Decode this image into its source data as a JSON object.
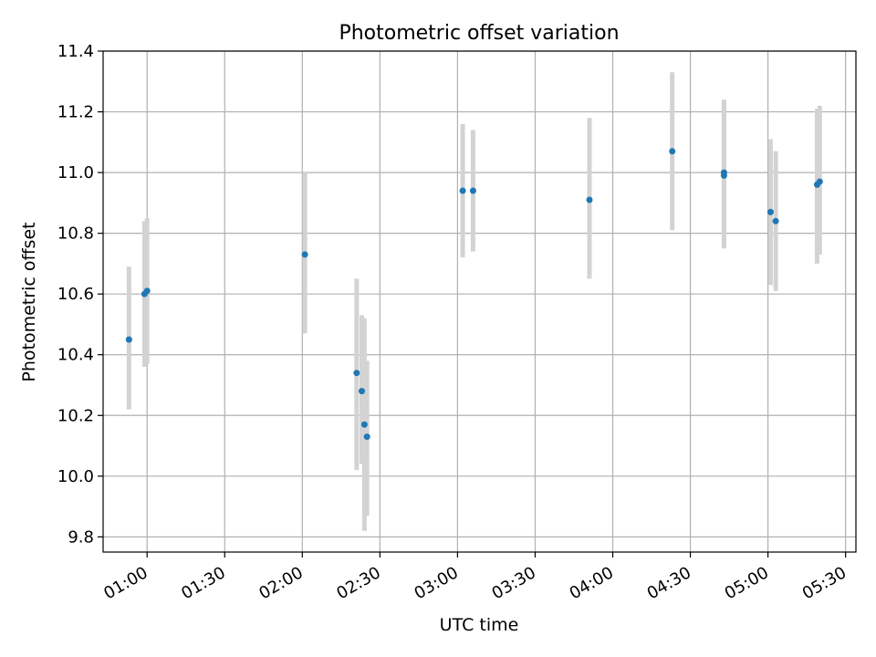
{
  "chart_data": {
    "type": "scatter",
    "title": "Photometric offset variation",
    "xlabel": "UTC time",
    "ylabel": "Photometric offset",
    "x_axis": {
      "format": "time",
      "xlim": [
        "00:43",
        "05:34"
      ],
      "ticks": [
        "01:00",
        "01:30",
        "02:00",
        "02:30",
        "03:00",
        "03:30",
        "04:00",
        "04:30",
        "05:00",
        "05:30"
      ]
    },
    "y_axis": {
      "ylim": [
        9.75,
        11.4
      ],
      "ticks": [
        "9.8",
        "10.0",
        "10.2",
        "10.4",
        "10.6",
        "10.8",
        "11.0",
        "11.2",
        "11.4"
      ]
    },
    "grid": true,
    "colors": {
      "marker": "#1f77b4",
      "errorbar": "#d3d3d3",
      "grid": "#b0b0b0"
    },
    "points": [
      {
        "x": "00:53",
        "y": 10.45,
        "lo": 10.22,
        "hi": 10.69
      },
      {
        "x": "00:59",
        "y": 10.6,
        "lo": 10.36,
        "hi": 10.84
      },
      {
        "x": "01:00",
        "y": 10.61,
        "lo": 10.37,
        "hi": 10.85
      },
      {
        "x": "02:01",
        "y": 10.73,
        "lo": 10.47,
        "hi": 11.0
      },
      {
        "x": "02:21",
        "y": 10.34,
        "lo": 10.02,
        "hi": 10.65
      },
      {
        "x": "02:23",
        "y": 10.28,
        "lo": 10.04,
        "hi": 10.53
      },
      {
        "x": "02:24",
        "y": 10.17,
        "lo": 9.82,
        "hi": 10.52
      },
      {
        "x": "02:25",
        "y": 10.13,
        "lo": 9.87,
        "hi": 10.38
      },
      {
        "x": "03:02",
        "y": 10.94,
        "lo": 10.72,
        "hi": 11.16
      },
      {
        "x": "03:06",
        "y": 10.94,
        "lo": 10.74,
        "hi": 11.14
      },
      {
        "x": "03:51",
        "y": 10.91,
        "lo": 10.65,
        "hi": 11.18
      },
      {
        "x": "04:23",
        "y": 11.07,
        "lo": 10.81,
        "hi": 11.33
      },
      {
        "x": "04:43",
        "y": 10.99,
        "lo": 10.75,
        "hi": 11.23
      },
      {
        "x": "04:43",
        "y": 11.0,
        "lo": 10.76,
        "hi": 11.24
      },
      {
        "x": "05:01",
        "y": 10.87,
        "lo": 10.63,
        "hi": 11.11
      },
      {
        "x": "05:03",
        "y": 10.84,
        "lo": 10.61,
        "hi": 11.07
      },
      {
        "x": "05:19",
        "y": 10.96,
        "lo": 10.7,
        "hi": 11.21
      },
      {
        "x": "05:20",
        "y": 10.97,
        "lo": 10.73,
        "hi": 11.22
      }
    ]
  }
}
